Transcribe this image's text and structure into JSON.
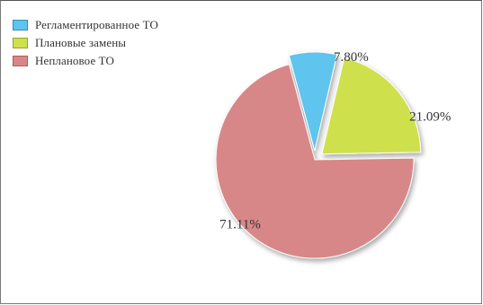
{
  "chart_data": {
    "type": "pie",
    "legend_position": "top-left",
    "slices": [
      {
        "label": "Регламентированное ТО",
        "value": 7.8,
        "display": "7.80%",
        "color": "#5ec4ee",
        "border": "#2a8fc0",
        "exploded": true
      },
      {
        "label": "Плановые замены",
        "value": 21.09,
        "display": "21.09%",
        "color": "#cfe04d",
        "border": "#96a52a",
        "exploded": true
      },
      {
        "label": "Неплановое ТО",
        "value": 71.11,
        "display": "71.11%",
        "color": "#d88788",
        "border": "#b05a5c",
        "exploded": false
      }
    ]
  }
}
